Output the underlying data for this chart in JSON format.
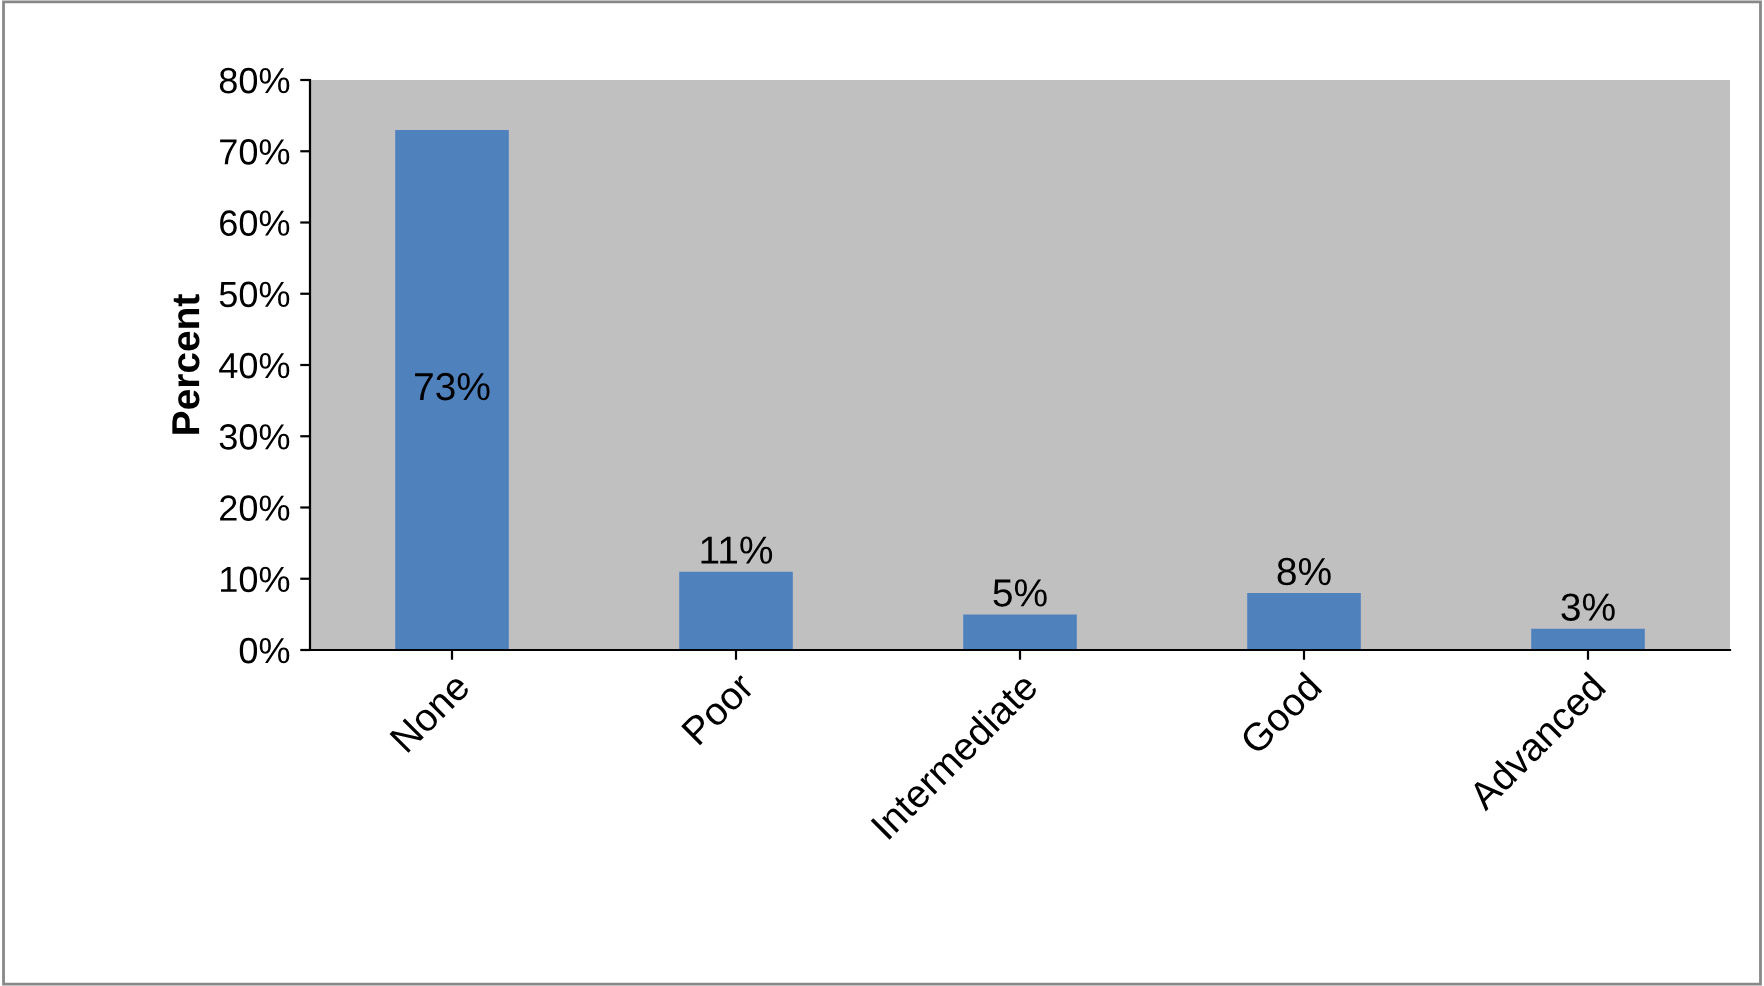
{
  "chart_data": {
    "type": "bar",
    "ylabel": "Percent",
    "categories": [
      "None",
      "Poor",
      "Intermediate",
      "Good",
      "Advanced"
    ],
    "values": [
      73,
      11,
      5,
      8,
      3
    ],
    "value_labels": [
      "73%",
      "11%",
      "5%",
      "8%",
      "3%"
    ],
    "color": "#4f81bd",
    "ylim": [
      0,
      80
    ],
    "yticks": [
      {
        "value": 0,
        "label": "0%"
      },
      {
        "value": 10,
        "label": "10%"
      },
      {
        "value": 20,
        "label": "20%"
      },
      {
        "value": 30,
        "label": "30%"
      },
      {
        "value": 40,
        "label": "40%"
      },
      {
        "value": 50,
        "label": "50%"
      },
      {
        "value": 60,
        "label": "60%"
      },
      {
        "value": 70,
        "label": "70%"
      },
      {
        "value": 80,
        "label": "80%"
      }
    ],
    "grid": false,
    "legend": false
  }
}
